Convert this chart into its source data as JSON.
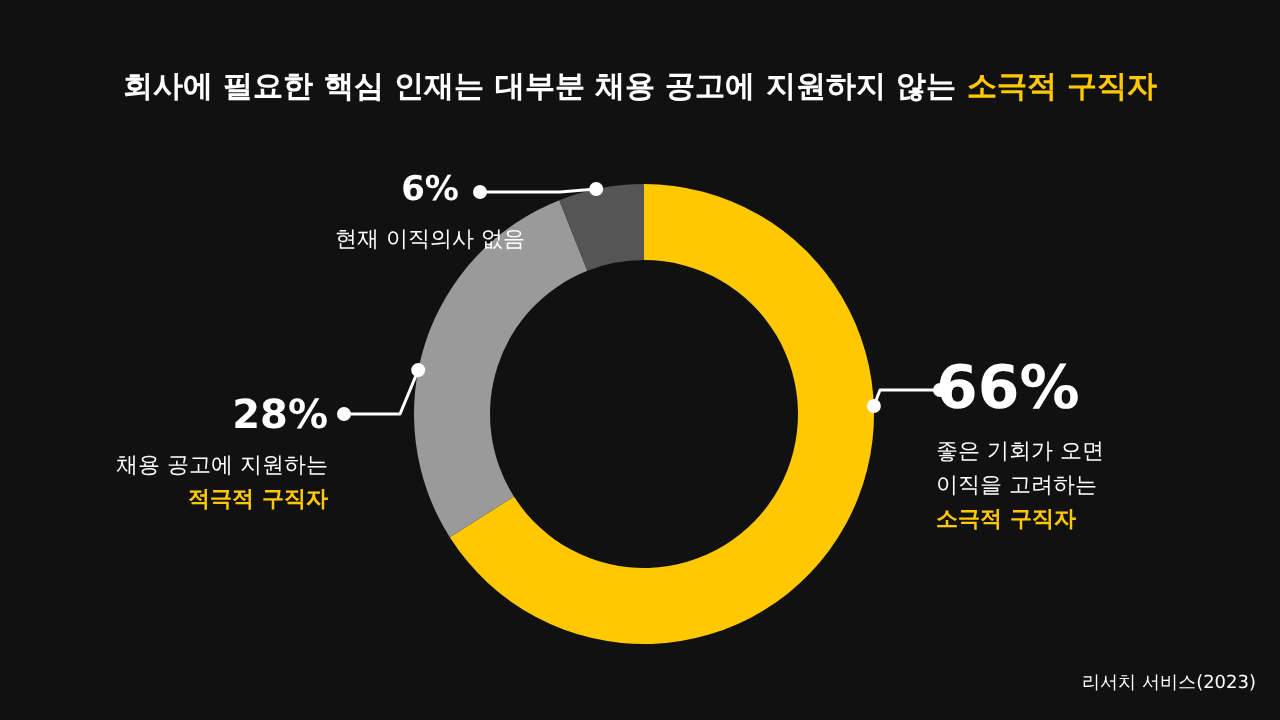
{
  "chart_data": {
    "type": "donut",
    "title": "회사에 필요한 핵심 인재는 대부분 채용 공고에 지원하지 않는 **소극적 구직자**",
    "categories": [
      "좋은 기회가 오면 이직을 고려하는 **소극적 구직자**",
      "채용 공고에 지원하는 **적극적 구직자**",
      "현재 이직의사 없음"
    ],
    "values": [
      66,
      28,
      6
    ],
    "colors": [
      "#ffc800",
      "#9a9a9a",
      "#555555"
    ],
    "value_labels": [
      "66%",
      "28%",
      "6%"
    ],
    "annotations": [
      "리서치 서비스(2023)"
    ]
  }
}
